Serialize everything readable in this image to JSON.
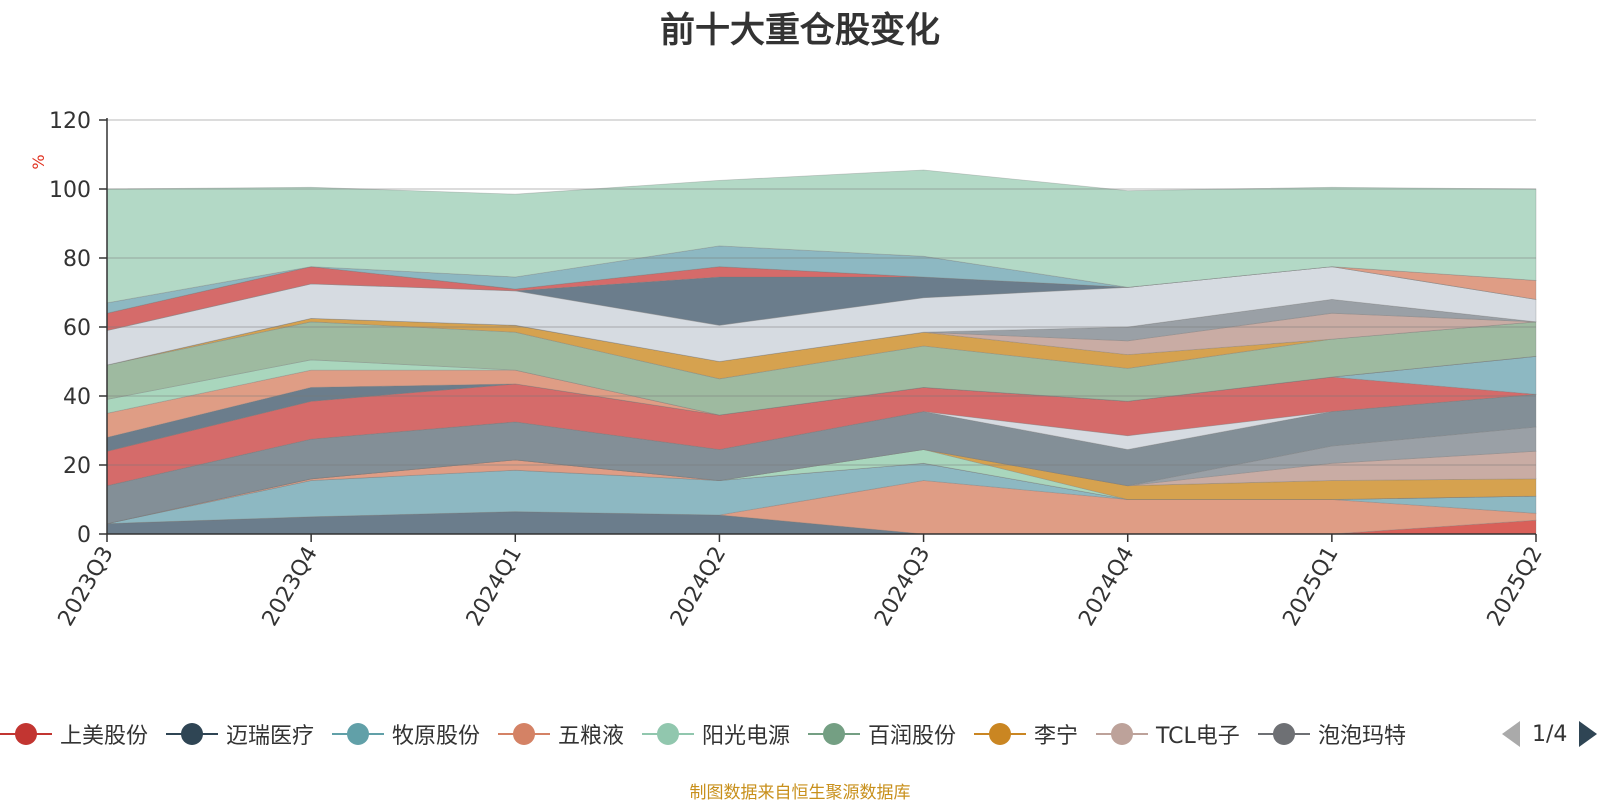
{
  "chart_data": {
    "type": "area",
    "title": "前十大重仓股变化",
    "ylabel": "%",
    "ylim": [
      0,
      120
    ],
    "yticks": [
      0,
      20,
      40,
      60,
      80,
      100,
      120
    ],
    "categories": [
      "2023Q3",
      "2023Q4",
      "2024Q1",
      "2024Q2",
      "2024Q3",
      "2024Q4",
      "2025Q1",
      "2025Q2"
    ],
    "grid": true,
    "legend_position": "bottom",
    "bands": [
      {
        "color": "#6b7d8c",
        "values": [
          3,
          5,
          6.5,
          5.5,
          0,
          0,
          0,
          0
        ]
      },
      {
        "color": "#d96059",
        "values": [
          0,
          0,
          0,
          0,
          0,
          0,
          0,
          4
        ]
      },
      {
        "color": "#df9d85",
        "values": [
          0,
          0,
          0,
          0,
          15.5,
          10,
          10,
          2
        ]
      },
      {
        "color": "#8db8c2",
        "values": [
          0,
          10.5,
          12,
          10,
          5,
          0,
          0,
          5
        ]
      },
      {
        "color": "#9ec0a4",
        "values": [
          0,
          0,
          0,
          0,
          0,
          0,
          0,
          0
        ]
      },
      {
        "color": "#df9d85",
        "values": [
          0,
          0.5,
          3,
          0,
          0,
          0,
          0,
          0
        ]
      },
      {
        "color": "#a9d6bd",
        "values": [
          0,
          0,
          0,
          0,
          4,
          0,
          0,
          0
        ]
      },
      {
        "color": "#d6a24f",
        "values": [
          0,
          0,
          0,
          0,
          0,
          4,
          5.5,
          5
        ]
      },
      {
        "color": "#c9aca4",
        "values": [
          0,
          0,
          0,
          0,
          0,
          0,
          5,
          8
        ]
      },
      {
        "color": "#9aa0a6",
        "values": [
          0,
          0,
          0,
          0,
          0,
          0,
          5,
          7
        ]
      },
      {
        "color": "#838f97",
        "values": [
          11,
          11.5,
          11,
          9,
          11,
          10.5,
          10,
          9.5
        ]
      },
      {
        "color": "#d6dbe1",
        "values": [
          0,
          0,
          0,
          0,
          0,
          4,
          0,
          0
        ]
      },
      {
        "color": "#d56b6a",
        "values": [
          10,
          11,
          11,
          10,
          7,
          10,
          10,
          0
        ]
      },
      {
        "color": "#8db8c2",
        "values": [
          0,
          0,
          0,
          0,
          0,
          0,
          0,
          11
        ]
      },
      {
        "color": "#6b7d8c",
        "values": [
          4,
          4,
          0,
          0,
          0,
          0,
          0,
          0
        ]
      },
      {
        "color": "#df9d85",
        "values": [
          7,
          5,
          4,
          0,
          0,
          0,
          0,
          0
        ]
      },
      {
        "color": "#a9d6bd",
        "values": [
          4,
          3,
          0,
          0,
          0,
          0,
          0,
          0
        ]
      },
      {
        "color": "#9ebaa0",
        "values": [
          10,
          11,
          11,
          10.5,
          12,
          9.5,
          11,
          10
        ]
      },
      {
        "color": "#d6a24f",
        "values": [
          0,
          1,
          2,
          5,
          4,
          4,
          0,
          0
        ]
      },
      {
        "color": "#c9aca4",
        "values": [
          0,
          0,
          0,
          0,
          0,
          4,
          7.5,
          0
        ]
      },
      {
        "color": "#9aa0a6",
        "values": [
          0,
          0,
          0,
          0,
          0,
          4,
          4,
          0
        ]
      },
      {
        "color": "#d6dbe1",
        "values": [
          10,
          10,
          10,
          10.5,
          10,
          11.5,
          9.5,
          6.5
        ]
      },
      {
        "color": "#6b7d8c",
        "values": [
          0,
          0,
          0,
          14,
          6,
          0,
          0,
          0
        ]
      },
      {
        "color": "#d56b6a",
        "values": [
          5,
          5,
          0.5,
          3,
          0,
          0,
          0,
          0
        ]
      },
      {
        "color": "#df9d85",
        "values": [
          0,
          0,
          0,
          0,
          0,
          0,
          0,
          5.5
        ]
      },
      {
        "color": "#8db8c2",
        "values": [
          3,
          0,
          3.5,
          6,
          6,
          0,
          0,
          0
        ]
      },
      {
        "color": "#b3d9c6",
        "values": [
          33,
          23,
          24,
          19,
          25,
          28,
          23,
          26.5
        ]
      }
    ],
    "legend": [
      {
        "name": "上美股份",
        "color": "#c23531"
      },
      {
        "name": "迈瑞医疗",
        "color": "#2f4554"
      },
      {
        "name": "牧原股份",
        "color": "#61a0a8"
      },
      {
        "name": "五粮液",
        "color": "#d48265"
      },
      {
        "name": "阳光电源",
        "color": "#91c7ae"
      },
      {
        "name": "百润股份",
        "color": "#749f83"
      },
      {
        "name": "李宁",
        "color": "#ca8622"
      },
      {
        "name": "TCL电子",
        "color": "#bda29a"
      },
      {
        "name": "泡泡玛特",
        "color": "#6e7074"
      }
    ],
    "legend_page": "1/4"
  },
  "legend_pager": {
    "prev_icon": "triangle-left-icon",
    "next_icon": "triangle-right-icon",
    "inactive_color": "#aaaaaa",
    "active_color": "#2f4554"
  },
  "source_note": "制图数据来自恒生聚源数据库"
}
